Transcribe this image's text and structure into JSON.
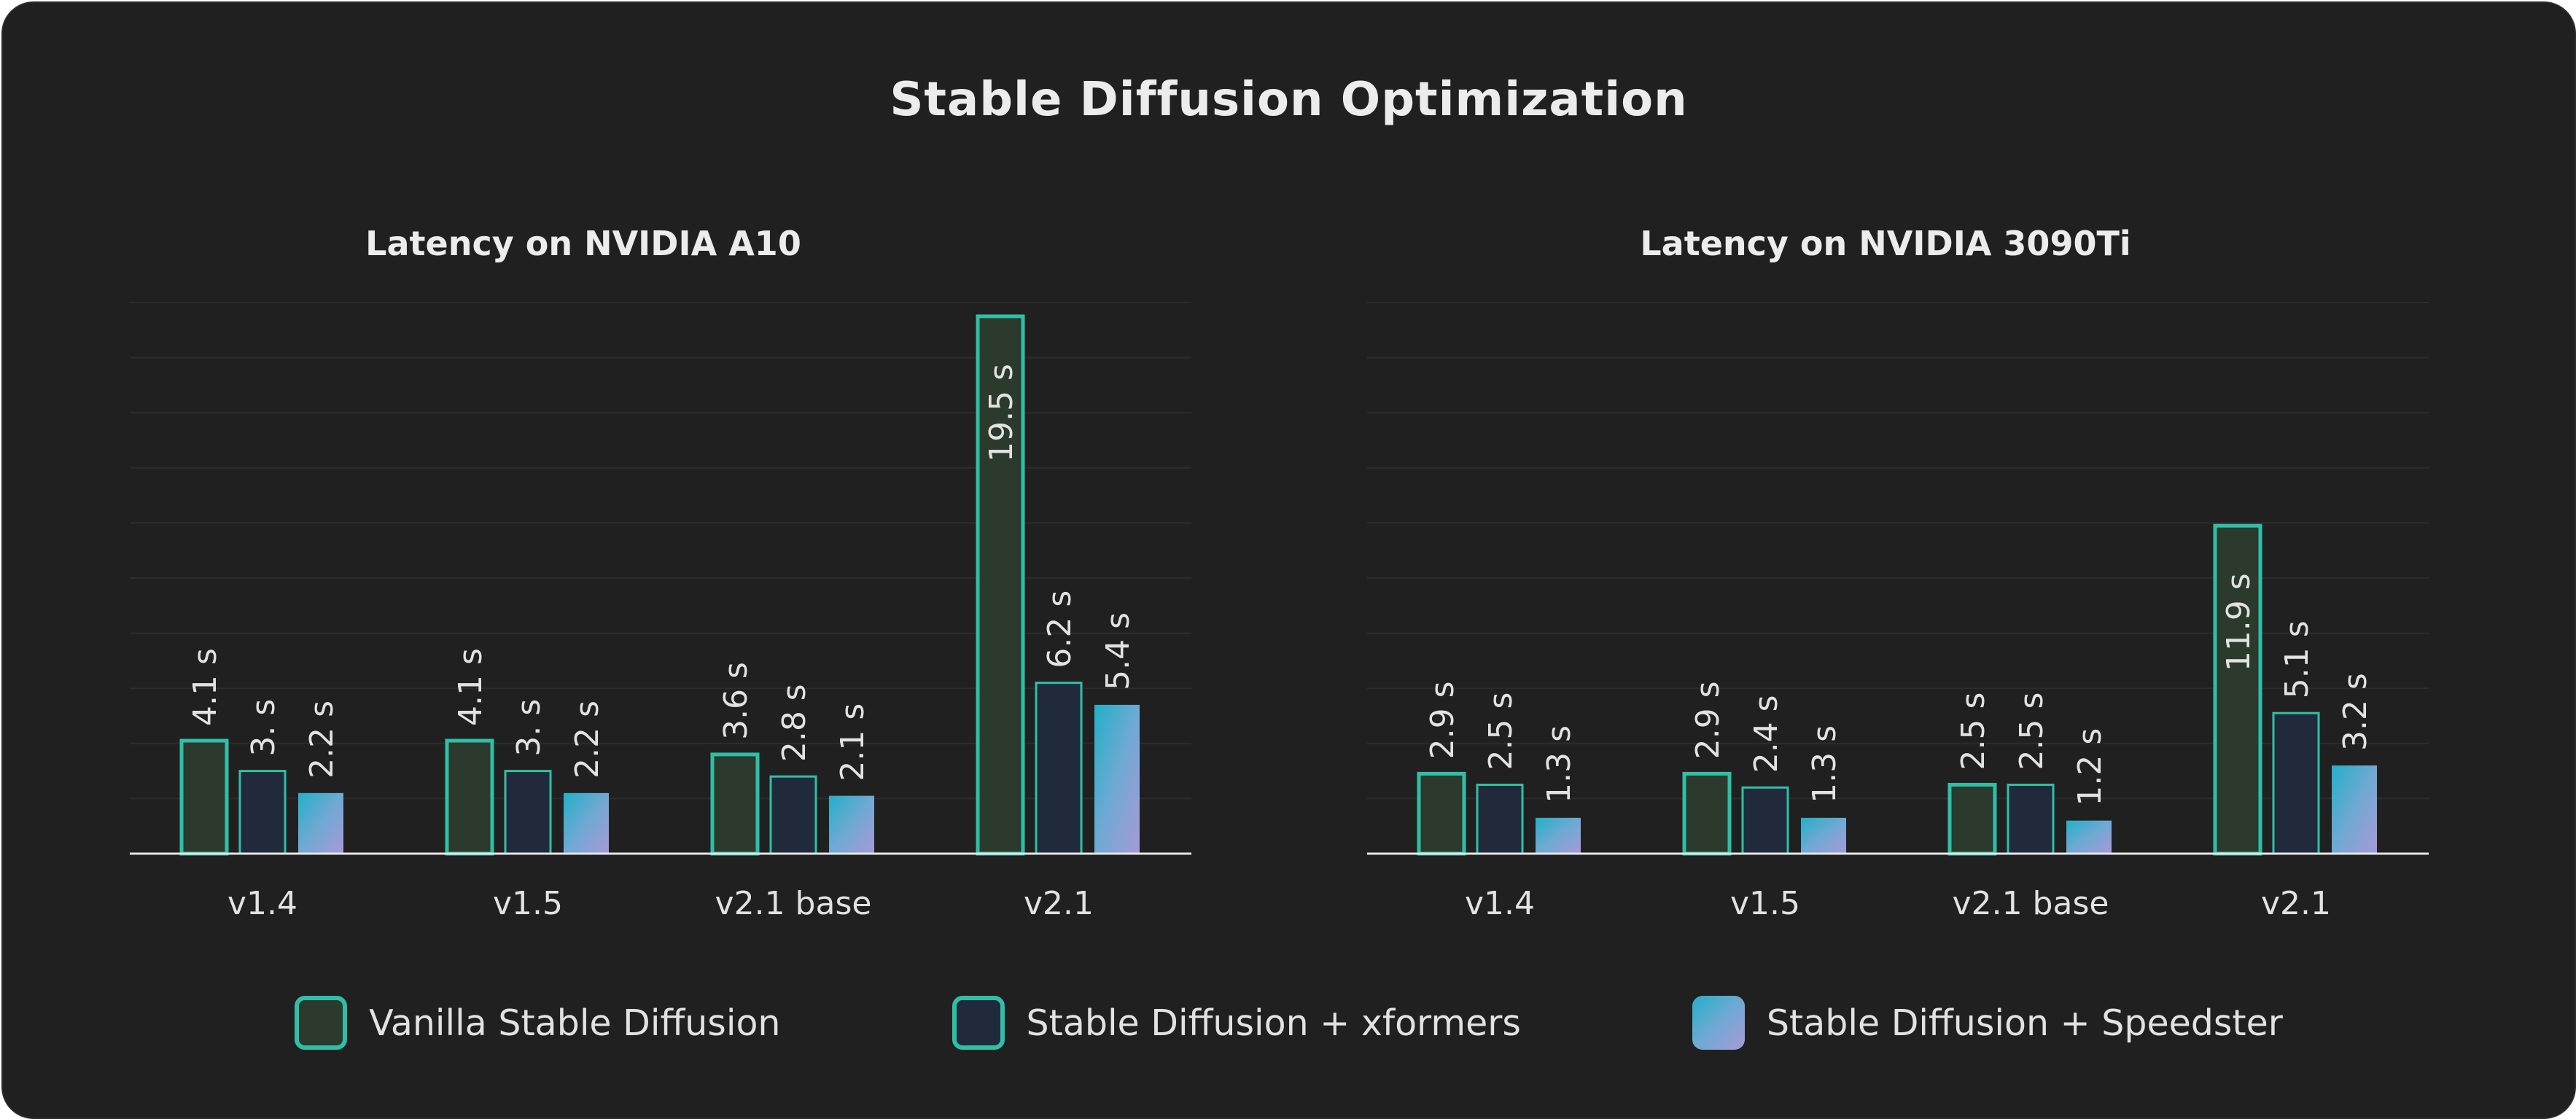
{
  "title": "Stable Diffusion Optimization",
  "colors": {
    "background": "#202020",
    "vanilla_fill": "#2b3a2c",
    "xformers_fill": "#202a3a",
    "outline": "#2fbfa7",
    "speedster_gradient": [
      "#22b0c8",
      "#a79ad6"
    ],
    "text": "#e2e2e2"
  },
  "legend": [
    {
      "label": "Vanilla Stable Diffusion"
    },
    {
      "label": "Stable Diffusion + xformers"
    },
    {
      "label": "Stable Diffusion + Speedster"
    }
  ],
  "chart_data": [
    {
      "type": "bar",
      "title": "Latency on  NVIDIA A10",
      "categories": [
        "v1.4",
        "v1.5",
        "v2.1 base",
        "v2.1"
      ],
      "series": [
        {
          "name": "Vanilla Stable Diffusion",
          "values": [
            4.1,
            4.1,
            3.6,
            19.5
          ],
          "labels": [
            "4.1 s",
            "4.1 s",
            "3.6 s",
            "19.5 s"
          ]
        },
        {
          "name": "Stable Diffusion + xformers",
          "values": [
            3.0,
            3.0,
            2.8,
            6.2
          ],
          "labels": [
            "3. s",
            "3. s",
            "2.8 s",
            "6.2 s"
          ]
        },
        {
          "name": "Stable Diffusion + Speedster",
          "values": [
            2.2,
            2.2,
            2.1,
            5.4
          ],
          "labels": [
            "2.2 s",
            "2.2 s",
            "2.1 s",
            "5.4 s"
          ]
        }
      ],
      "ylim": [
        0,
        20
      ],
      "grid": true
    },
    {
      "type": "bar",
      "title": "Latency on NVIDIA 3090Ti",
      "categories": [
        "v1.4",
        "v1.5",
        "v2.1 base",
        "v2.1"
      ],
      "series": [
        {
          "name": "Vanilla Stable Diffusion",
          "values": [
            2.9,
            2.9,
            2.5,
            11.9
          ],
          "labels": [
            "2.9 s",
            "2.9 s",
            "2.5 s",
            "11.9 s"
          ]
        },
        {
          "name": "Stable Diffusion + xformers",
          "values": [
            2.5,
            2.4,
            2.5,
            5.1
          ],
          "labels": [
            "2.5 s",
            "2.4 s",
            "2.5 s",
            "5.1 s"
          ]
        },
        {
          "name": "Stable Diffusion + Speedster",
          "values": [
            1.3,
            1.3,
            1.2,
            3.2
          ],
          "labels": [
            "1.3 s",
            "1.3 s",
            "1.2 s",
            "3.2 s"
          ]
        }
      ],
      "ylim": [
        0,
        20
      ],
      "grid": true
    }
  ]
}
